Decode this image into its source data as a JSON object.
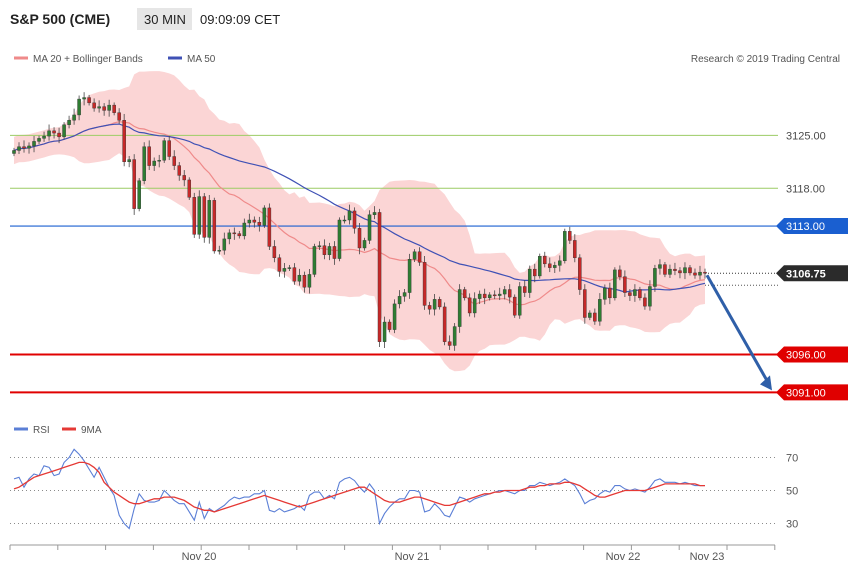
{
  "header": {
    "title": "S&P 500 (CME)",
    "timeframe": "30 MIN",
    "time": "09:09:09 CET"
  },
  "legend": {
    "ma20_label": "MA 20 + Bollinger Bands",
    "ma50_label": "MA 50",
    "credit": "Research © 2019 Trading Central",
    "rsi_label": "RSI",
    "rsi_ma_label": "9MA"
  },
  "colors": {
    "up": "#2e7d32",
    "down": "#c62828",
    "band": "#fbd5d5",
    "ma20": "#ef8a8a",
    "ma50": "#3f51b5",
    "resistance_blue": "#1a5fd0",
    "support_red": "#e00000",
    "green_level": "#9ccc65",
    "arrow": "#2f5fa8",
    "rsi": "#5b7fd6",
    "rsi_ma": "#e53935"
  },
  "chart_data": [
    {
      "type": "candlestick",
      "title": "S&P 500 (CME) 30 MIN",
      "x_labels": [
        "Nov 20",
        "Nov 21",
        "Nov 22",
        "Nov 23"
      ],
      "ylim": [
        3088,
        3131
      ],
      "levels": [
        {
          "label": "3125.00",
          "value": 3125.0,
          "kind": "green"
        },
        {
          "label": "3118.00",
          "value": 3118.0,
          "kind": "green"
        },
        {
          "label": "3113.00",
          "value": 3113.0,
          "kind": "resistance"
        },
        {
          "label": "3106.75",
          "value": 3106.75,
          "kind": "last"
        },
        {
          "label": "3096.00",
          "value": 3096.0,
          "kind": "support"
        },
        {
          "label": "3091.00",
          "value": 3091.0,
          "kind": "support"
        }
      ],
      "arrow": {
        "from": 3106.75,
        "to": 3091.0
      },
      "closes": [
        3123.0,
        3123.5,
        3123.3,
        3123.6,
        3124.2,
        3124.6,
        3124.9,
        3125.6,
        3125.3,
        3124.8,
        3126.4,
        3127.0,
        3127.7,
        3129.8,
        3130.0,
        3129.3,
        3128.6,
        3128.8,
        3128.3,
        3129.0,
        3128.0,
        3127.0,
        3121.5,
        3121.8,
        3115.3,
        3119.0,
        3123.5,
        3121.0,
        3121.6,
        3121.7,
        3124.3,
        3122.2,
        3121.0,
        3119.7,
        3119.1,
        3116.8,
        3111.9,
        3116.9,
        3111.5,
        3116.4,
        3109.7,
        3109.8,
        3111.3,
        3112.1,
        3112.0,
        3111.7,
        3113.4,
        3113.8,
        3113.5,
        3113.1,
        3115.4,
        3110.3,
        3108.8,
        3107.0,
        3107.4,
        3107.5,
        3105.7,
        3106.5,
        3104.9,
        3106.6,
        3110.3,
        3110.4,
        3109.2,
        3110.3,
        3108.7,
        3113.8,
        3113.8,
        3115.0,
        3112.7,
        3110.1,
        3111.1,
        3114.5,
        3114.8,
        3097.7,
        3100.3,
        3099.3,
        3102.7,
        3103.7,
        3104.2,
        3108.6,
        3109.6,
        3108.2,
        3102.5,
        3102.0,
        3103.3,
        3102.3,
        3097.7,
        3097.2,
        3099.7,
        3104.6,
        3103.5,
        3101.5,
        3103.4,
        3104.0,
        3103.5,
        3103.9,
        3103.8,
        3104.0,
        3104.6,
        3103.6,
        3101.2,
        3105.0,
        3104.2,
        3107.3,
        3106.4,
        3109.0,
        3108.0,
        3107.5,
        3107.8,
        3108.4,
        3112.3,
        3111.1,
        3108.8,
        3104.6,
        3100.9,
        3101.5,
        3100.4,
        3103.3,
        3104.8,
        3103.5,
        3107.2,
        3106.3,
        3104.2,
        3103.8,
        3104.6,
        3103.5,
        3102.4,
        3105.0,
        3107.4,
        3107.9,
        3106.6,
        3107.3,
        3107.1,
        3106.8,
        3107.5,
        3106.8,
        3106.5,
        3106.9,
        3106.75
      ],
      "rsi_range": [
        20,
        80
      ],
      "rsi_ticks": [
        30,
        50,
        70
      ],
      "rsi": [
        57,
        58,
        52,
        57,
        60,
        59,
        65,
        64,
        59,
        60,
        67,
        70,
        75,
        72,
        68,
        63,
        58,
        64,
        58,
        52,
        47,
        35,
        30,
        27,
        39,
        48,
        44,
        43,
        43,
        44,
        50,
        47,
        44,
        42,
        42,
        37,
        32,
        43,
        33,
        39,
        37,
        39,
        41,
        44,
        46,
        45,
        46,
        46,
        48,
        48,
        50,
        38,
        37,
        39,
        37,
        38,
        39,
        41,
        38,
        47,
        49,
        49,
        45,
        47,
        45,
        55,
        57,
        58,
        56,
        52,
        49,
        54,
        50,
        30,
        36,
        40,
        43,
        45,
        45,
        50,
        50,
        49,
        37,
        38,
        42,
        39,
        35,
        34,
        40,
        46,
        45,
        43,
        45,
        46,
        47,
        48,
        49,
        50,
        50,
        49,
        48,
        50,
        50,
        53,
        53,
        55,
        54,
        53,
        54,
        55,
        57,
        55,
        53,
        48,
        42,
        44,
        45,
        48,
        50,
        49,
        53,
        53,
        51,
        50,
        51,
        50,
        49,
        52,
        56,
        57,
        55,
        55,
        55,
        54,
        55,
        54,
        53,
        53,
        53
      ],
      "rsi_ma": [
        51,
        52,
        54,
        56,
        58,
        59,
        60,
        61,
        62,
        63,
        64,
        65,
        66,
        67,
        67,
        66,
        64,
        61,
        55,
        52,
        49,
        47,
        45,
        43,
        42,
        42,
        43,
        44,
        45,
        45,
        46,
        46,
        46,
        45,
        44,
        42,
        40,
        39,
        38,
        38,
        37,
        38,
        39,
        40,
        41,
        42,
        43,
        44,
        45,
        46,
        47,
        46,
        45,
        44,
        43,
        42,
        41,
        40,
        41,
        42,
        43,
        44,
        45,
        46,
        47,
        48,
        49,
        50,
        51,
        52,
        52,
        50,
        48,
        46,
        44,
        43,
        43,
        43,
        44,
        45,
        46,
        46,
        45,
        44,
        43,
        42,
        41,
        41,
        42,
        43,
        44,
        45,
        46,
        47,
        48,
        48,
        49,
        49,
        50,
        50,
        50,
        50,
        51,
        52,
        52,
        53,
        53,
        54,
        54,
        54,
        55,
        55,
        54,
        53,
        51,
        49,
        47,
        46,
        46,
        47,
        48,
        49,
        50,
        50,
        50,
        50,
        50,
        51,
        52,
        53,
        54,
        54,
        54,
        54,
        54,
        54,
        54,
        53,
        53
      ]
    }
  ]
}
